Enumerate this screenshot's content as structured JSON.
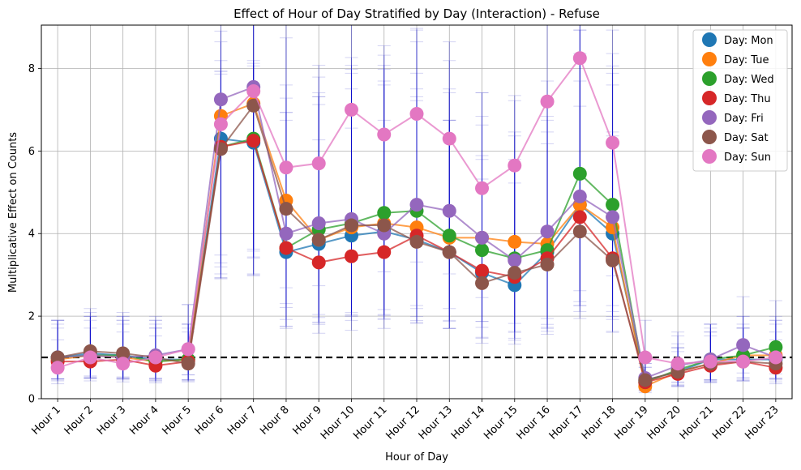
{
  "chart_data": {
    "type": "line",
    "title": "Effect of Hour of Day Stratified by Day (Interaction) - Refuse",
    "xlabel": "Hour of Day",
    "ylabel": "Multiplicative Effect on Counts",
    "categories": [
      "Hour 1",
      "Hour 2",
      "Hour 3",
      "Hour 4",
      "Hour 5",
      "Hour 6",
      "Hour 7",
      "Hour 8",
      "Hour 9",
      "Hour 10",
      "Hour 11",
      "Hour 12",
      "Hour 13",
      "Hour 14",
      "Hour 15",
      "Hour 16",
      "Hour 17",
      "Hour 18",
      "Hour 19",
      "Hour 20",
      "Hour 21",
      "Hour 22",
      "Hour 23"
    ],
    "ylim": [
      0,
      9.05
    ],
    "yticks": [
      0,
      2,
      4,
      6,
      8
    ],
    "grid": true,
    "legend_position": "top-right",
    "reference_line": {
      "y": 1,
      "style": "dashed",
      "color": "#000000"
    },
    "series": [
      {
        "name": "Day: Mon",
        "color": "#1f77b4",
        "values": [
          1.0,
          1.1,
          1.05,
          0.95,
          0.95,
          6.3,
          6.2,
          3.55,
          3.75,
          3.95,
          4.05,
          3.85,
          3.55,
          3.05,
          2.75,
          3.55,
          4.7,
          4.0,
          0.45,
          0.65,
          0.95,
          0.95,
          0.95
        ]
      },
      {
        "name": "Day: Tue",
        "color": "#ff7f0e",
        "values": [
          0.95,
          1.05,
          1.0,
          0.9,
          0.95,
          6.85,
          7.15,
          4.8,
          3.85,
          4.15,
          4.25,
          4.15,
          3.9,
          3.9,
          3.8,
          3.75,
          4.7,
          4.15,
          0.3,
          0.65,
          0.85,
          1.05,
          1.05
        ]
      },
      {
        "name": "Day: Wed",
        "color": "#2ca02c",
        "values": [
          1.0,
          1.05,
          1.05,
          0.9,
          0.95,
          6.1,
          6.3,
          3.65,
          4.1,
          4.25,
          4.5,
          4.55,
          3.95,
          3.6,
          3.4,
          3.6,
          5.45,
          4.7,
          0.4,
          0.7,
          0.95,
          1.05,
          1.25
        ]
      },
      {
        "name": "Day: Thu",
        "color": "#d62728",
        "values": [
          0.9,
          0.9,
          0.95,
          0.8,
          0.9,
          6.1,
          6.25,
          3.65,
          3.3,
          3.45,
          3.55,
          3.95,
          3.55,
          3.1,
          2.95,
          3.4,
          4.4,
          3.4,
          0.4,
          0.6,
          0.8,
          0.9,
          0.75
        ]
      },
      {
        "name": "Day: Fri",
        "color": "#9467bd",
        "values": [
          1.0,
          1.05,
          1.0,
          1.05,
          1.2,
          7.25,
          7.55,
          4.0,
          4.25,
          4.35,
          4.0,
          4.7,
          4.55,
          3.9,
          3.35,
          4.05,
          4.9,
          4.4,
          0.5,
          0.8,
          0.95,
          1.3,
          1.0
        ]
      },
      {
        "name": "Day: Sat",
        "color": "#8c564b",
        "values": [
          1.0,
          1.15,
          1.1,
          1.0,
          0.85,
          6.05,
          7.1,
          4.6,
          3.85,
          4.2,
          4.2,
          3.8,
          3.55,
          2.8,
          3.05,
          3.25,
          4.05,
          3.35,
          0.45,
          0.65,
          0.85,
          0.9,
          0.85
        ]
      },
      {
        "name": "Day: Sun",
        "color": "#e377c2",
        "values": [
          0.75,
          1.0,
          0.85,
          1.0,
          1.2,
          6.65,
          7.45,
          5.6,
          5.7,
          7.0,
          6.4,
          6.9,
          6.3,
          5.1,
          5.65,
          7.2,
          8.25,
          6.2,
          1.0,
          0.85,
          0.9,
          0.9,
          1.0
        ]
      }
    ]
  }
}
